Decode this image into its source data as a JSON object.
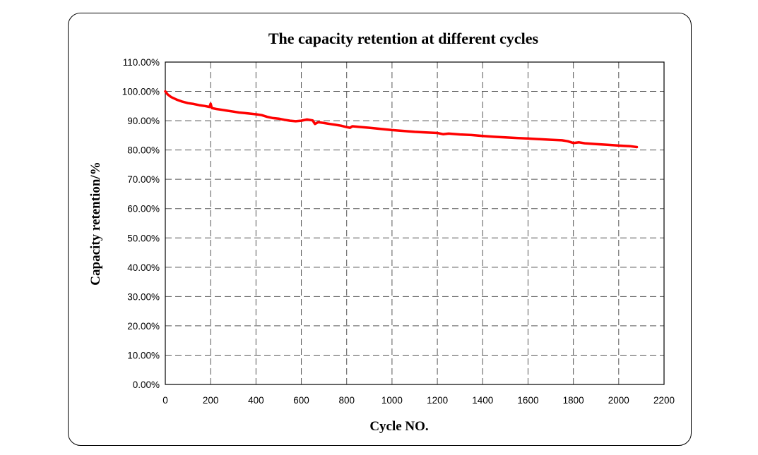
{
  "chart_data": {
    "type": "line",
    "title": "The capacity retention at different cycles",
    "xlabel": "Cycle NO.",
    "ylabel": "Capacity retention/%",
    "xlim": [
      0,
      2200
    ],
    "ylim": [
      0,
      1.1
    ],
    "x_ticks": [
      0,
      200,
      400,
      600,
      800,
      1000,
      1200,
      1400,
      1600,
      1800,
      2000,
      2200
    ],
    "x_tick_labels": [
      "0",
      "200",
      "400",
      "600",
      "800",
      "1000",
      "1200",
      "1400",
      "1600",
      "1800",
      "2000",
      "2200"
    ],
    "y_ticks": [
      0,
      0.1,
      0.2,
      0.3,
      0.4,
      0.5,
      0.6,
      0.7,
      0.8,
      0.9,
      1.0,
      1.1
    ],
    "y_tick_labels": [
      "0.00%",
      "10.00%",
      "20.00%",
      "30.00%",
      "40.00%",
      "50.00%",
      "60.00%",
      "70.00%",
      "80.00%",
      "90.00%",
      "100.00%",
      "110.00%"
    ],
    "grid": true,
    "grid_style": "dashed",
    "legend": "none",
    "series": [
      {
        "color": "#ff0000",
        "x": [
          0,
          10,
          25,
          50,
          75,
          100,
          125,
          150,
          175,
          195,
          200,
          205,
          225,
          250,
          275,
          300,
          325,
          350,
          375,
          400,
          425,
          450,
          475,
          500,
          525,
          550,
          575,
          600,
          625,
          650,
          660,
          675,
          700,
          725,
          750,
          775,
          800,
          815,
          825,
          850,
          900,
          950,
          1000,
          1050,
          1100,
          1150,
          1200,
          1225,
          1250,
          1300,
          1350,
          1400,
          1450,
          1500,
          1550,
          1600,
          1650,
          1700,
          1750,
          1775,
          1800,
          1825,
          1850,
          1900,
          1950,
          2000,
          2050,
          2080
        ],
        "values": [
          1.0,
          0.99,
          0.981,
          0.972,
          0.965,
          0.96,
          0.957,
          0.953,
          0.95,
          0.947,
          0.958,
          0.943,
          0.94,
          0.937,
          0.934,
          0.931,
          0.928,
          0.926,
          0.924,
          0.922,
          0.919,
          0.913,
          0.909,
          0.907,
          0.903,
          0.9,
          0.898,
          0.9,
          0.904,
          0.901,
          0.889,
          0.895,
          0.892,
          0.889,
          0.886,
          0.883,
          0.878,
          0.876,
          0.881,
          0.879,
          0.876,
          0.872,
          0.868,
          0.865,
          0.862,
          0.86,
          0.858,
          0.854,
          0.856,
          0.853,
          0.851,
          0.848,
          0.845,
          0.843,
          0.841,
          0.839,
          0.837,
          0.835,
          0.833,
          0.83,
          0.824,
          0.826,
          0.823,
          0.82,
          0.818,
          0.815,
          0.813,
          0.81
        ]
      }
    ]
  }
}
